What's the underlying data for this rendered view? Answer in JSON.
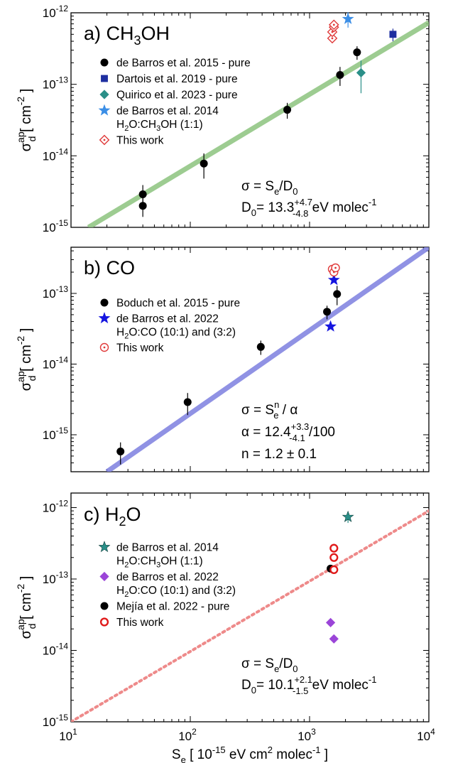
{
  "figure": {
    "xlabel": {
      "main": "S",
      "sub": "e",
      "rest": " [ 10",
      "sup": "-15",
      "rest2": " eV cm",
      "sup2": "2",
      "rest3": " molec",
      "sup3": "-1",
      "end": " ]"
    },
    "ylabel": {
      "main": "σ",
      "sup": "ap",
      "sub": "d",
      "rest": " [ cm",
      "sup2": "-2",
      "end": " ]"
    },
    "x_ticks": [
      {
        "value": 10,
        "base": "10",
        "exp": "1"
      },
      {
        "value": 100,
        "base": "10",
        "exp": "2"
      },
      {
        "value": 1000,
        "base": "10",
        "exp": "3"
      },
      {
        "value": 10000,
        "base": "10",
        "exp": "4"
      }
    ]
  },
  "chart_data": [
    {
      "type": "scatter",
      "scale": "log-log",
      "xlim": [
        10,
        10000
      ],
      "ylim": [
        1e-15,
        1e-12
      ],
      "panel_label": {
        "pre": "a) CH",
        "sub": "3",
        "post": "OH"
      },
      "y_ticks": [
        {
          "value": 1e-15,
          "base": "10",
          "exp": "-15"
        },
        {
          "value": 1e-14,
          "base": "10",
          "exp": "-14"
        },
        {
          "value": 1e-13,
          "base": "10",
          "exp": "-13"
        },
        {
          "value": 1e-12,
          "base": "10",
          "exp": "-12"
        }
      ],
      "fit": {
        "style": "solid",
        "color": "#8cc47e",
        "points": [
          [
            14,
            1e-15
          ],
          [
            10000,
            7.3e-13
          ]
        ]
      },
      "series": [
        {
          "name": "de Barros et al. 2015 - pure",
          "marker": "circle",
          "color": "#000000",
          "points": [
            [
              40,
              2.9e-15,
              1e-15
            ],
            [
              40,
              2e-15,
              6e-16
            ],
            [
              130,
              7.8e-15,
              3e-15
            ],
            [
              650,
              4.4e-14,
              1.1e-14
            ],
            [
              1800,
              1.35e-13,
              4e-14
            ],
            [
              2500,
              2.8e-13,
              6e-14
            ]
          ]
        },
        {
          "name": "Dartois et al. 2019 - pure",
          "marker": "square",
          "color": "#1e2fa0",
          "points": [
            [
              5000,
              5e-13,
              1e-13
            ]
          ]
        },
        {
          "name": "Quirico et al. 2023 - pure",
          "marker": "diamond",
          "color": "#2a8f88",
          "points": [
            [
              2700,
              1.45e-13,
              7e-14
            ]
          ]
        },
        {
          "name": "de Barros et al. 2014",
          "name2": "H2O:CH3OH (1:1)",
          "marker": "star",
          "color": "#3b8ee6",
          "points": [
            [
              2100,
              8.2e-13,
              2e-13
            ]
          ]
        },
        {
          "name": "This work",
          "marker": "open-diamond-dot",
          "color": "#e03a3a",
          "points": [
            [
              1550,
              4.4e-13,
              0
            ],
            [
              1550,
              5.4e-13,
              0
            ],
            [
              1600,
              6.3e-13,
              0
            ],
            [
              1600,
              6.8e-13,
              0
            ]
          ]
        }
      ],
      "legend": {
        "placement": "top-left",
        "entries": [
          {
            "marker": "circle",
            "color": "#000000",
            "text": "de Barros et al. 2015 - pure"
          },
          {
            "marker": "square",
            "color": "#1e2fa0",
            "text": "Dartois et al. 2019 - pure"
          },
          {
            "marker": "diamond",
            "color": "#2a8f88",
            "text": "Quirico et al. 2023 - pure"
          },
          {
            "marker": "star",
            "color": "#3b8ee6",
            "text": "de Barros et al. 2014",
            "text2_parts": [
              "H",
              "2",
              "O:CH",
              "3",
              "OH (1:1)"
            ]
          },
          {
            "marker": "open-diamond-dot",
            "color": "#e03a3a",
            "text": "This work"
          }
        ]
      },
      "annotation": {
        "line1": {
          "a": "σ = S",
          "b": "e",
          "c": "/D",
          "d": "0"
        },
        "line2": {
          "a": "D",
          "b": "0",
          "c": "= 13.3",
          "sup": "+4.7",
          "sub": "-4.8",
          "d": " eV molec",
          "sup2": "-1"
        }
      }
    },
    {
      "type": "scatter",
      "scale": "log-log",
      "xlim": [
        10,
        10000
      ],
      "ylim": [
        3e-16,
        4.5e-13
      ],
      "panel_label": {
        "pre": "b) CO",
        "sub": "",
        "post": ""
      },
      "y_ticks": [
        {
          "value": 1e-15,
          "base": "10",
          "exp": "-15"
        },
        {
          "value": 1e-14,
          "base": "10",
          "exp": "-14"
        },
        {
          "value": 1e-13,
          "base": "10",
          "exp": "-13"
        }
      ],
      "fit": {
        "style": "solid",
        "color": "#7d80e0",
        "points": [
          [
            20,
            3e-16
          ],
          [
            10000,
            4.5e-13
          ]
        ]
      },
      "series": [
        {
          "name": "Boduch et al. 2015 - pure",
          "marker": "circle",
          "color": "#000000",
          "points": [
            [
              26,
              5.8e-16,
              2e-16
            ],
            [
              95,
              2.9e-15,
              1e-15
            ],
            [
              390,
              1.75e-14,
              4e-15
            ],
            [
              1400,
              5.5e-14,
              1.2e-14
            ],
            [
              1700,
              9.8e-14,
              3e-14
            ]
          ]
        },
        {
          "name": "de Barros et al. 2022",
          "name2": "H2O:CO (10:1) and (3:2)",
          "marker": "star",
          "color": "#1515e0",
          "points": [
            [
              1500,
              3.4e-14,
              0
            ],
            [
              1600,
              1.55e-13,
              0
            ]
          ]
        },
        {
          "name": "This work",
          "marker": "open-circle-dot",
          "color": "#e03a3a",
          "points": [
            [
              1550,
              2.2e-13,
              0
            ],
            [
              1600,
              2e-13,
              0
            ],
            [
              1650,
              2.3e-13,
              0
            ]
          ]
        }
      ],
      "legend": {
        "placement": "top-left",
        "entries": [
          {
            "marker": "circle",
            "color": "#000000",
            "text": "Boduch et al. 2015 - pure"
          },
          {
            "marker": "star",
            "color": "#1515e0",
            "text": "de Barros et al. 2022",
            "text2_parts": [
              "H",
              "2",
              "O:CO (10:1) and  (3:2)",
              "",
              ""
            ]
          },
          {
            "marker": "open-circle-dot",
            "color": "#e03a3a",
            "text": "This work"
          }
        ]
      },
      "annotation": {
        "line1": {
          "a": "σ =  S",
          "sup": "n",
          "sub": "e",
          "c": " / α"
        },
        "line2": {
          "a": "α = 12.4",
          "sup": "+3.3",
          "sub": "-4.1",
          "c": " /100"
        },
        "line3": {
          "a": "n = 1.2 ± 0.1"
        }
      }
    },
    {
      "type": "scatter",
      "scale": "log-log",
      "xlim": [
        10,
        10000
      ],
      "ylim": [
        1e-15,
        1.6e-12
      ],
      "panel_label": {
        "pre": "c) H",
        "sub": "2",
        "post": "O"
      },
      "y_ticks": [
        {
          "value": 1e-15,
          "base": "10",
          "exp": "-15"
        },
        {
          "value": 1e-14,
          "base": "10",
          "exp": "-14"
        },
        {
          "value": 1e-13,
          "base": "10",
          "exp": "-13"
        },
        {
          "value": 1e-12,
          "base": "10",
          "exp": "-12"
        }
      ],
      "fit": {
        "style": "dotted",
        "color": "#ee8a8a",
        "points": [
          [
            10,
            1e-15
          ],
          [
            10000,
            9e-13
          ]
        ]
      },
      "series": [
        {
          "name": "de Barros et al. 2014",
          "name2": "H2O:CH3OH (1:1)",
          "marker": "star",
          "color": "#2a8f88",
          "points": [
            [
              2100,
              7.4e-13,
              1.3e-13
            ]
          ]
        },
        {
          "name": "de Barros et al. 2022",
          "name2": "H2O:CO (10:1) and (3:2)",
          "marker": "diamond",
          "color": "#9b45d8",
          "points": [
            [
              1500,
              2.45e-14,
              0
            ],
            [
              1600,
              1.45e-14,
              0
            ]
          ]
        },
        {
          "name": "Mejía et al. 2022 - pure",
          "marker": "circle",
          "color": "#000000",
          "points": [
            [
              1500,
              1.4e-13,
              0
            ]
          ]
        },
        {
          "name": "This work",
          "marker": "open-circle",
          "color": "#e01a1a",
          "points": [
            [
              1600,
              2.7e-13,
              0
            ],
            [
              1600,
              2e-13,
              0
            ],
            [
              1600,
              1.35e-13,
              0
            ]
          ]
        }
      ],
      "legend": {
        "placement": "top-left",
        "entries": [
          {
            "marker": "star",
            "color": "#2a8f88",
            "text": "de Barros et al. 2014",
            "text2_parts": [
              "H",
              "2",
              "O:CH",
              "3",
              "OH (1:1)"
            ]
          },
          {
            "marker": "diamond",
            "color": "#9b45d8",
            "text": "de Barros et al. 2022",
            "text2_parts": [
              "H",
              "2",
              "O:CO (10:1) and  (3:2)",
              "",
              ""
            ]
          },
          {
            "marker": "circle",
            "color": "#000000",
            "text": "Mejía et al. 2022 - pure"
          },
          {
            "marker": "open-circle",
            "color": "#e01a1a",
            "text": "This work"
          }
        ]
      },
      "annotation": {
        "line1": {
          "a": "σ = S",
          "b": "e",
          "c": "/D",
          "d": "0"
        },
        "line2": {
          "a": "D",
          "b": "0",
          "c": "= 10.1",
          "sup": "+2.1",
          "sub": "-1.5",
          "d": " eV molec",
          "sup2": "-1"
        }
      }
    }
  ]
}
